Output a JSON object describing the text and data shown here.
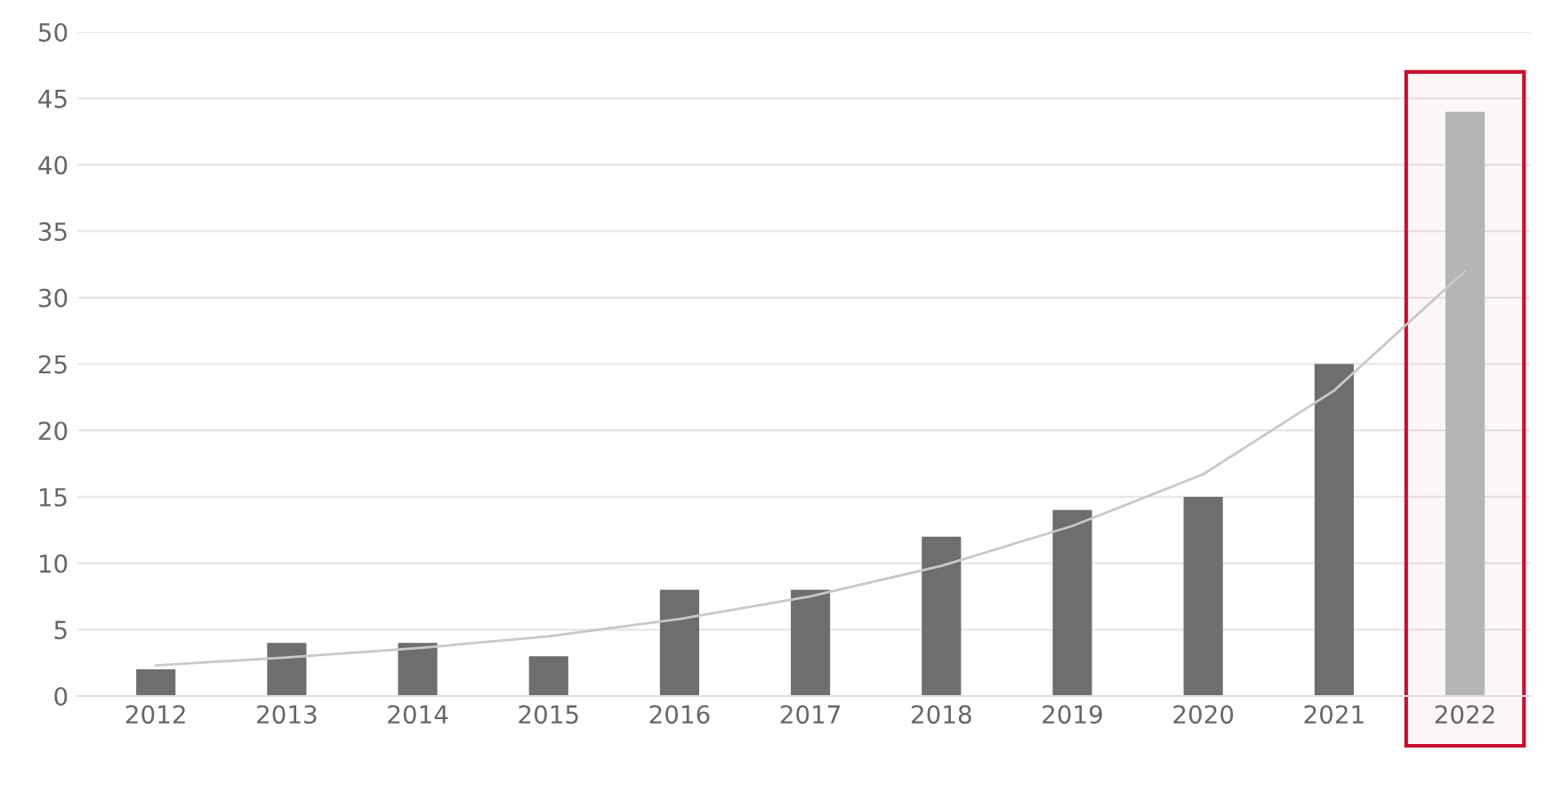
{
  "chart_data": {
    "type": "bar",
    "categories": [
      "2012",
      "2013",
      "2014",
      "2015",
      "2016",
      "2017",
      "2018",
      "2019",
      "2020",
      "2021",
      "2022"
    ],
    "series": [
      {
        "colors": [
          "#6e6e6e",
          "#6e6e6e",
          "#6e6e6e",
          "#6e6e6e",
          "#6e6e6e",
          "#6e6e6e",
          "#6e6e6e",
          "#6e6e6e",
          "#6e6e6e",
          "#6e6e6e",
          "#b5b5b5"
        ],
        "values": [
          2,
          4,
          4,
          3,
          8,
          8,
          12,
          14,
          15,
          25,
          44
        ]
      },
      {
        "type": "line",
        "color": "#c8c8c8",
        "values": [
          2.3,
          2.9,
          3.6,
          4.5,
          5.8,
          7.5,
          9.8,
          12.8,
          16.7,
          23,
          32
        ]
      }
    ],
    "bands": [
      {
        "axis": "x",
        "from": "2022",
        "to": "2022",
        "color": "#c8102e"
      }
    ],
    "ylim": [
      0,
      50
    ],
    "yticks": [
      0,
      5,
      10,
      15,
      20,
      25,
      30,
      35,
      40,
      45,
      50
    ],
    "grid": "y"
  }
}
